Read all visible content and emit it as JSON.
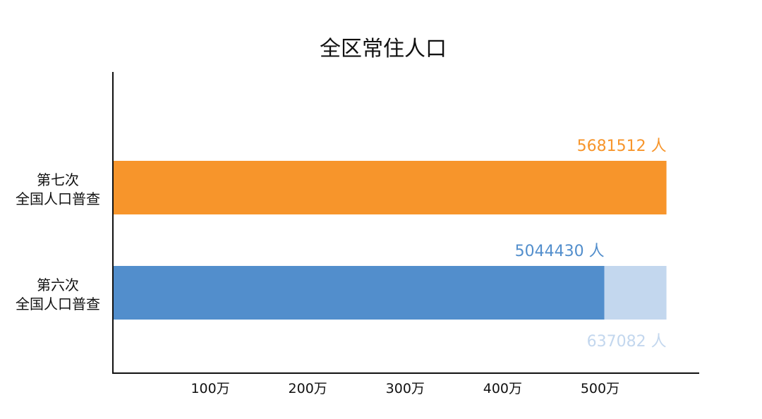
{
  "chart_data": {
    "type": "bar",
    "orientation": "horizontal",
    "stacked": true,
    "title": "全区常住人口",
    "categories": [
      "第七次\n全国人口普查",
      "第六次\n全国人口普查"
    ],
    "series": [
      {
        "values": [
          5681512,
          5044430
        ],
        "colors": [
          "#F7952B",
          "#528ECC"
        ],
        "labels": [
          "5681512 人",
          "5044430 人"
        ],
        "label_colors": [
          "#F7952B",
          "#528ECC"
        ]
      },
      {
        "values": [
          null,
          637082
        ],
        "colors": [
          null,
          "#C3D7EE"
        ],
        "labels": [
          null,
          "637082 人"
        ],
        "label_colors": [
          null,
          "#C3D7EE"
        ]
      }
    ],
    "xticks": [
      {
        "value": 1000000,
        "label": "100万"
      },
      {
        "value": 2000000,
        "label": "200万"
      },
      {
        "value": 3000000,
        "label": "300万"
      },
      {
        "value": 4000000,
        "label": "400万"
      },
      {
        "value": 5000000,
        "label": "500万"
      }
    ],
    "xlim": [
      0,
      6300000
    ],
    "xlabel": "",
    "ylabel": "",
    "grid": false,
    "legend": "none"
  }
}
